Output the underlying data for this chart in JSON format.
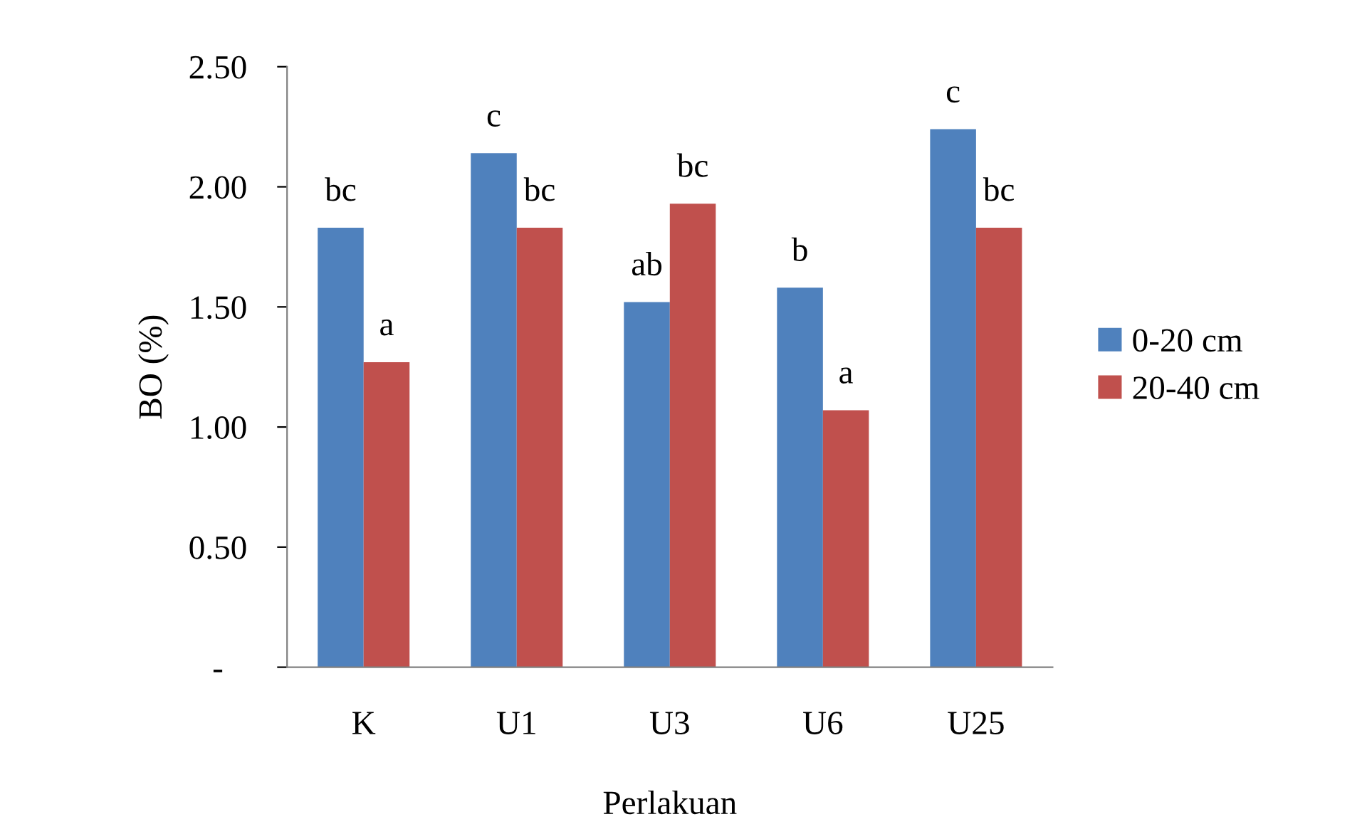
{
  "chart_data": {
    "type": "bar",
    "xlabel": "Perlakuan",
    "ylabel": "BO (%)",
    "categories": [
      "K",
      "U1",
      "U3",
      "U6",
      "U25"
    ],
    "series": [
      {
        "name": "0-20 cm",
        "color": "#4f81bd",
        "values": [
          1.83,
          2.14,
          1.52,
          1.58,
          2.24
        ]
      },
      {
        "name": "20-40 cm",
        "color": "#c0504d",
        "values": [
          1.27,
          1.83,
          1.93,
          1.07,
          1.83
        ]
      }
    ],
    "ylim": [
      0,
      2.5
    ],
    "yticks": [
      {
        "value": 0,
        "label": "-"
      },
      {
        "value": 0.5,
        "label": "0.50"
      },
      {
        "value": 1.0,
        "label": "1.00"
      },
      {
        "value": 1.5,
        "label": "1.50"
      },
      {
        "value": 2.0,
        "label": "2.00"
      },
      {
        "value": 2.5,
        "label": "2.50"
      }
    ],
    "grid": false,
    "legend": "right",
    "annotations": [
      {
        "text": "bc",
        "x": "K",
        "y": 1.83
      },
      {
        "text": "a",
        "x": "K",
        "y": 1.27
      },
      {
        "text": "c",
        "x": "U1",
        "y": 2.14
      },
      {
        "text": "bc",
        "x": "U1",
        "y": 1.83
      },
      {
        "text": "ab",
        "x": "U3",
        "y": 1.52
      },
      {
        "text": "bc",
        "x": "U3",
        "y": 1.93
      },
      {
        "text": "b",
        "x": "U6",
        "y": 1.58
      },
      {
        "text": "a",
        "x": "U6",
        "y": 1.07
      },
      {
        "text": "c",
        "x": "U25",
        "y": 2.24
      },
      {
        "text": "bc",
        "x": "U25",
        "y": 1.83
      }
    ]
  }
}
